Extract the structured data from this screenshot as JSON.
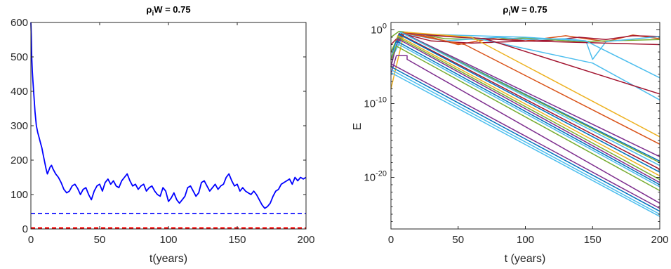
{
  "chart_data": [
    {
      "type": "line",
      "title": "ρiW =  0.75",
      "title_parts": {
        "rho": "ρ",
        "sub": "i",
        "rest": "W =  0.75"
      },
      "xlabel": "t(years)",
      "ylabel": "",
      "xlim": [
        0,
        200
      ],
      "ylim": [
        0,
        600
      ],
      "xticks": [
        0,
        50,
        100,
        150,
        200
      ],
      "yticks": [
        0,
        100,
        200,
        300,
        400,
        500,
        600
      ],
      "grid": false,
      "series": [
        {
          "color": "#0000ff",
          "style": "solid",
          "x": [
            0,
            0.3,
            0.6,
            1,
            1.5,
            2,
            2.5,
            3,
            4,
            5,
            6,
            7,
            8,
            9,
            10,
            11,
            12,
            13,
            14,
            15,
            16,
            18,
            20,
            22,
            24,
            26,
            28,
            30,
            32,
            34,
            36,
            38,
            40,
            42,
            44,
            46,
            48,
            50,
            52,
            54,
            56,
            58,
            60,
            62,
            64,
            66,
            68,
            70,
            72,
            74,
            76,
            78,
            80,
            82,
            84,
            86,
            88,
            90,
            92,
            94,
            96,
            98,
            100,
            102,
            104,
            106,
            108,
            110,
            112,
            114,
            116,
            118,
            120,
            122,
            124,
            126,
            128,
            130,
            132,
            134,
            136,
            138,
            140,
            142,
            144,
            146,
            148,
            150,
            152,
            154,
            156,
            158,
            160,
            162,
            164,
            166,
            168,
            170,
            172,
            174,
            176,
            178,
            180,
            182,
            184,
            186,
            188,
            190,
            192,
            194,
            196,
            198,
            200
          ],
          "y": [
            600,
            560,
            500,
            460,
            430,
            400,
            370,
            340,
            300,
            280,
            265,
            250,
            235,
            215,
            195,
            175,
            160,
            170,
            180,
            185,
            175,
            160,
            150,
            135,
            115,
            105,
            110,
            125,
            130,
            118,
            100,
            115,
            120,
            100,
            85,
            110,
            125,
            130,
            110,
            135,
            145,
            130,
            140,
            125,
            120,
            140,
            150,
            160,
            140,
            125,
            130,
            115,
            125,
            130,
            110,
            120,
            125,
            110,
            100,
            95,
            120,
            110,
            80,
            90,
            105,
            85,
            75,
            85,
            95,
            120,
            125,
            110,
            95,
            105,
            135,
            140,
            125,
            110,
            120,
            130,
            115,
            125,
            130,
            150,
            160,
            140,
            125,
            130,
            110,
            120,
            110,
            105,
            100,
            110,
            100,
            85,
            70,
            60,
            65,
            75,
            95,
            110,
            115,
            130,
            135,
            140,
            145,
            130,
            150,
            140,
            150,
            145,
            150
          ]
        },
        {
          "color": "#0000ff",
          "style": "dashed",
          "x": [
            0,
            200
          ],
          "y": [
            45,
            45
          ]
        },
        {
          "color": "#ff0000",
          "style": "dashed",
          "x": [
            0,
            200
          ],
          "y": [
            2,
            2
          ]
        }
      ]
    },
    {
      "type": "line",
      "title": "ρiW =  0.75",
      "title_parts": {
        "rho": "ρ",
        "sub": "i",
        "rest": "W =  0.75"
      },
      "xlabel": "t (years)",
      "ylabel": "E",
      "yscale": "log",
      "xlim": [
        0,
        200
      ],
      "ylim_log10": [
        -27,
        1
      ],
      "xticks": [
        0,
        50,
        100,
        150,
        200
      ],
      "ytick_labels": [
        {
          "log10": 0,
          "base": "10",
          "exp": "0"
        },
        {
          "log10": -10,
          "base": "10",
          "exp": "-10"
        },
        {
          "log10": -20,
          "base": "10",
          "exp": "-20"
        }
      ],
      "grid": false,
      "series": [
        {
          "color": "#d95319",
          "x": [
            0,
            10,
            30,
            50,
            80,
            100,
            130,
            160,
            180,
            200
          ],
          "y_log10": [
            -3,
            -0.4,
            -1,
            -2,
            -1,
            -1.5,
            -0.8,
            -1.6,
            -0.7,
            -1.2
          ]
        },
        {
          "color": "#a2142f",
          "x": [
            0,
            8,
            30,
            60,
            90,
            120,
            140,
            160,
            180,
            200
          ],
          "y_log10": [
            -2,
            -0.5,
            -1.5,
            -1.8,
            -1.6,
            -1.4,
            -1.0,
            -1.3,
            -0.8,
            -0.9
          ]
        },
        {
          "color": "#77ac30",
          "x": [
            0,
            6,
            20,
            40,
            70,
            100,
            140,
            200
          ],
          "y_log10": [
            -1,
            -0.2,
            -0.5,
            -1.2,
            -1.3,
            -1.1,
            -1.6,
            -1.3
          ]
        },
        {
          "color": "#4dbeee",
          "x": [
            0,
            10,
            40,
            80,
            100,
            130,
            145,
            150,
            160,
            200
          ],
          "y_log10": [
            -3,
            -0.5,
            -1.5,
            -1.0,
            -1.3,
            -1.2,
            -1.5,
            -4.0,
            -1.6,
            -0.9
          ]
        },
        {
          "color": "#a2142f",
          "x": [
            0,
            10,
            50,
            100,
            200
          ],
          "y_log10": [
            -3,
            -0.5,
            -1.0,
            -1.5,
            -2.0
          ]
        },
        {
          "color": "#4dbeee",
          "x": [
            0,
            10,
            100,
            145,
            200
          ],
          "y_log10": [
            -4,
            -0.5,
            -1.0,
            -1.5,
            -6.5
          ]
        },
        {
          "color": "#4dbeee",
          "x": [
            0,
            10,
            60,
            150,
            200
          ],
          "y_log10": [
            -4,
            -0.5,
            -1.0,
            -4.5,
            -9.5
          ]
        },
        {
          "color": "#a2142f",
          "x": [
            0,
            8,
            70,
            200
          ],
          "y_log10": [
            -4,
            -0.4,
            -1.2,
            -8.7
          ]
        },
        {
          "color": "#edb120",
          "x": [
            0,
            10,
            60,
            200
          ],
          "y_log10": [
            -8,
            -0.3,
            -1.0,
            -14.5
          ]
        },
        {
          "color": "#d95319",
          "x": [
            0,
            9,
            55,
            200
          ],
          "y_log10": [
            -3,
            -0.4,
            -2.0,
            -15.5
          ]
        },
        {
          "color": "#7e2f8e",
          "x": [
            0,
            10,
            200
          ],
          "y_log10": [
            -3,
            -0.5,
            -17.2
          ]
        },
        {
          "color": "#0072bd",
          "x": [
            0,
            8,
            200
          ],
          "y_log10": [
            -3,
            -0.4,
            -17.8
          ]
        },
        {
          "color": "#77ac30",
          "x": [
            0,
            7,
            200
          ],
          "y_log10": [
            -3,
            -0.3,
            -18.0
          ]
        },
        {
          "color": "#4dbeee",
          "x": [
            0,
            7,
            200
          ],
          "y_log10": [
            -4,
            -0.3,
            -18.4
          ]
        },
        {
          "color": "#a2142f",
          "x": [
            0,
            6,
            200
          ],
          "y_log10": [
            -4,
            -0.5,
            -18.9
          ]
        },
        {
          "color": "#0072bd",
          "x": [
            0,
            6,
            200
          ],
          "y_log10": [
            -5,
            -0.6,
            -19.3
          ]
        },
        {
          "color": "#edb120",
          "x": [
            0,
            5,
            200
          ],
          "y_log10": [
            -5,
            -0.8,
            -19.8
          ]
        },
        {
          "color": "#77ac30",
          "x": [
            0,
            5,
            200
          ],
          "y_log10": [
            -5,
            -1.0,
            -20.3
          ]
        },
        {
          "color": "#7e2f8e",
          "x": [
            0,
            5,
            200
          ],
          "y_log10": [
            -5,
            -1.2,
            -20.7
          ]
        },
        {
          "color": "#0072bd",
          "x": [
            0,
            4,
            200
          ],
          "y_log10": [
            -4,
            -1.5,
            -21.0
          ]
        },
        {
          "color": "#4dbeee",
          "x": [
            0,
            4,
            200
          ],
          "y_log10": [
            -4,
            -1.8,
            -21.3
          ]
        },
        {
          "color": "#77ac30",
          "x": [
            0,
            4,
            200
          ],
          "y_log10": [
            -4,
            -2.2,
            -21.8
          ]
        },
        {
          "color": "#7e2f8e",
          "x": [
            0,
            4,
            12,
            12,
            200
          ],
          "y_log10": [
            -6,
            -3.5,
            -3.5,
            -4.0,
            -23.5
          ]
        },
        {
          "color": "#7e2f8e",
          "x": [
            0,
            200
          ],
          "y_log10": [
            -4.6,
            -24.2
          ]
        },
        {
          "color": "#0072bd",
          "x": [
            0,
            200
          ],
          "y_log10": [
            -5.0,
            -24.6
          ]
        },
        {
          "color": "#4dbeee",
          "x": [
            0,
            200
          ],
          "y_log10": [
            -5.4,
            -25.0
          ]
        },
        {
          "color": "#4dbeee",
          "x": [
            0,
            200
          ],
          "y_log10": [
            -5.8,
            -25.3
          ]
        }
      ]
    }
  ]
}
